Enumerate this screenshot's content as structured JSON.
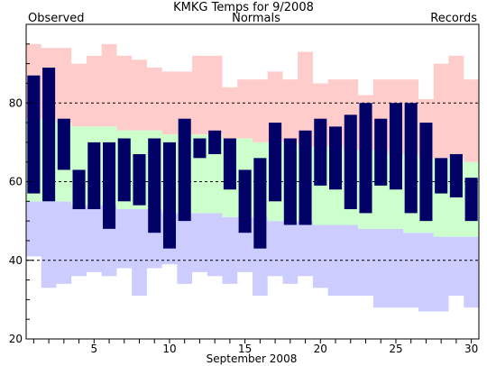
{
  "chart_data": {
    "type": "bar",
    "title": "KMKG Temps for 9/2008",
    "xlabel": "September 2008",
    "ylabel": "",
    "legend": {
      "observed": "Observed",
      "normals": "Normals",
      "records": "Records"
    },
    "colors": {
      "observed": "#000066",
      "normals": "#ccffcc",
      "records_high": "#ffcccc",
      "records_low": "#ccccff",
      "label_observed": "#000066",
      "label_normals": "#006600",
      "label_records": "#cc99cc",
      "gridline": "#000000"
    },
    "xlim": [
      0.5,
      30.5
    ],
    "ylim": [
      20,
      100
    ],
    "x_ticks": [
      "5",
      "10",
      "15",
      "20",
      "25",
      "30"
    ],
    "y_ticks": [
      "20",
      "40",
      "60",
      "80"
    ],
    "gridlines_y": [
      40,
      60,
      80
    ],
    "days": [
      1,
      2,
      3,
      4,
      5,
      6,
      7,
      8,
      9,
      10,
      11,
      12,
      13,
      14,
      15,
      16,
      17,
      18,
      19,
      20,
      21,
      22,
      23,
      24,
      25,
      26,
      27,
      28,
      29,
      30
    ],
    "series": [
      {
        "name": "Observed",
        "key": "obs_high",
        "values": [
          87,
          89,
          76,
          63,
          70,
          70,
          71,
          67,
          71,
          70,
          76,
          71,
          73,
          71,
          63,
          66,
          75,
          71,
          73,
          76,
          74,
          77,
          80,
          76,
          80,
          80,
          75,
          66,
          67,
          61
        ]
      },
      {
        "name": "Observed",
        "key": "obs_low",
        "values": [
          57,
          55,
          63,
          53,
          53,
          48,
          55,
          54,
          47,
          43,
          50,
          66,
          67,
          58,
          47,
          43,
          55,
          49,
          49,
          59,
          58,
          53,
          52,
          59,
          58,
          52,
          50,
          57,
          56,
          50
        ]
      },
      {
        "name": "Normals",
        "key": "norm_high",
        "values": [
          76,
          76,
          75,
          74,
          74,
          74,
          73,
          73,
          73,
          72,
          72,
          72,
          72,
          71,
          71,
          70,
          70,
          70,
          69,
          69,
          69,
          68,
          68,
          68,
          67,
          67,
          66,
          66,
          66,
          65
        ]
      },
      {
        "name": "Normals",
        "key": "norm_low",
        "values": [
          55,
          55,
          55,
          54,
          54,
          54,
          53,
          53,
          53,
          52,
          52,
          52,
          52,
          51,
          51,
          51,
          50,
          50,
          50,
          49,
          49,
          49,
          48,
          48,
          48,
          47,
          47,
          46,
          46,
          46
        ]
      },
      {
        "name": "Records",
        "key": "rec_high",
        "values": [
          95,
          94,
          94,
          90,
          92,
          95,
          92,
          91,
          89,
          88,
          88,
          92,
          92,
          84,
          86,
          86,
          88,
          86,
          93,
          85,
          86,
          86,
          82,
          86,
          86,
          86,
          81,
          90,
          92,
          86
        ]
      },
      {
        "name": "Records",
        "key": "rec_low",
        "values": [
          41,
          33,
          34,
          36,
          37,
          36,
          38,
          31,
          38,
          39,
          34,
          37,
          36,
          34,
          37,
          31,
          36,
          34,
          36,
          33,
          31,
          31,
          31,
          28,
          28,
          28,
          27,
          27,
          31,
          28
        ]
      }
    ]
  }
}
